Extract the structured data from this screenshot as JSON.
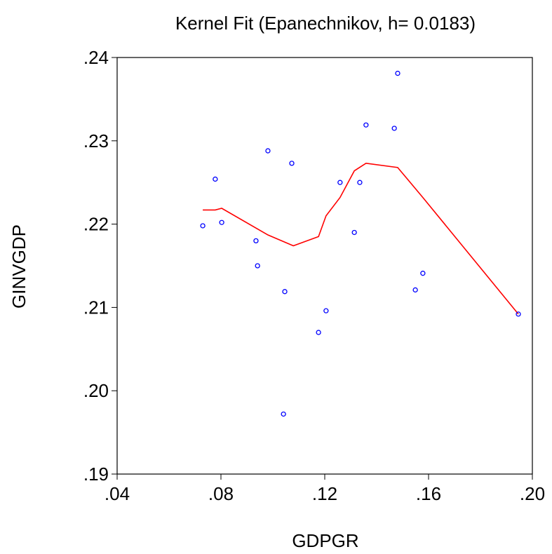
{
  "chart_data": {
    "type": "scatter",
    "title": "Kernel Fit (Epanechnikov, h= 0.0183)",
    "x_label": "GDPGR",
    "y_label": "GINVGDP",
    "xlim": [
      0.04,
      0.2
    ],
    "xticks": [
      {
        "value": 0.04,
        "label": ".04"
      },
      {
        "value": 0.08,
        "label": ".08"
      },
      {
        "value": 0.12,
        "label": ".12"
      },
      {
        "value": 0.16,
        "label": ".16"
      },
      {
        "value": 0.2,
        "label": ".20"
      }
    ],
    "ylim": [
      0.19,
      0.24
    ],
    "yticks": [
      {
        "value": 0.19,
        "label": ".19"
      },
      {
        "value": 0.2,
        "label": ".20"
      },
      {
        "value": 0.21,
        "label": ".21"
      },
      {
        "value": 0.22,
        "label": ".22"
      },
      {
        "value": 0.23,
        "label": ".23"
      },
      {
        "value": 0.24,
        "label": ".24"
      }
    ],
    "points": {
      "color": "#0000ff",
      "x": [
        0.073,
        0.0778,
        0.0803,
        0.0981,
        0.0935,
        0.0941,
        0.1046,
        0.1073,
        0.1205,
        0.1176,
        0.1041,
        0.1259,
        0.1314,
        0.1335,
        0.1359,
        0.1468,
        0.1481,
        0.1549,
        0.1578,
        0.1946
      ],
      "y": [
        0.2198,
        0.2254,
        0.2202,
        0.2288,
        0.218,
        0.215,
        0.2119,
        0.2273,
        0.2096,
        0.207,
        0.1972,
        0.225,
        0.219,
        0.225,
        0.2319,
        0.2315,
        0.2381,
        0.2121,
        0.2141,
        0.2092
      ]
    },
    "fit": {
      "color": "#ff0000",
      "x": [
        0.073,
        0.0778,
        0.0803,
        0.0981,
        0.1079,
        0.1176,
        0.1205,
        0.1259,
        0.1314,
        0.1359,
        0.1481,
        0.1578,
        0.1946
      ],
      "y": [
        0.2217,
        0.2217,
        0.2219,
        0.2187,
        0.2174,
        0.2185,
        0.221,
        0.2232,
        0.2264,
        0.2273,
        0.2268,
        0.2232,
        0.2092
      ]
    }
  }
}
